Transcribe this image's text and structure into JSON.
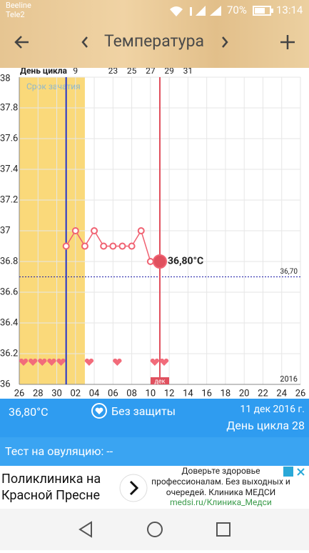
{
  "status_bar": {
    "carrier1": "Beeline",
    "carrier2": "Tele2",
    "battery": "70%",
    "time": "13:14"
  },
  "header": {
    "title": "Температура"
  },
  "chart_data": {
    "type": "line",
    "categories": [
      "26",
      null,
      "28",
      null,
      "30",
      null,
      "02",
      null,
      "04",
      null,
      "06",
      null,
      "08",
      null,
      "10",
      null,
      "12",
      null,
      "14",
      null,
      "16",
      null,
      "18",
      null,
      "20",
      null,
      "22",
      null,
      "24",
      null,
      "26"
    ],
    "series": [
      {
        "color": "#f06272",
        "values": [
          null,
          null,
          null,
          null,
          null,
          36.9,
          37,
          36.9,
          37,
          36.9,
          36.9,
          36.9,
          36.9,
          37,
          36.8,
          36.8,
          null,
          null,
          null,
          null,
          null,
          null,
          null,
          null,
          null,
          null,
          null,
          null,
          null,
          null,
          null
        ],
        "value_labels": [
          null,
          null,
          null,
          null,
          null,
          null,
          null,
          null,
          null,
          null,
          null,
          null,
          null,
          null,
          null,
          "36,80°C",
          null,
          null,
          null,
          null,
          null,
          null,
          null,
          null,
          null,
          null,
          null,
          null,
          null,
          null,
          null
        ]
      }
    ],
    "ylim": [
      36,
      38
    ],
    "yticks": [
      36,
      36.2,
      36.4,
      36.6,
      36.8,
      37,
      37.2,
      37.4,
      37.6,
      37.8,
      38
    ],
    "grid": true,
    "cover_line": {
      "value": 36.7,
      "label": "36,70",
      "color": "#1a1aa8"
    },
    "fertile_window": {
      "label": "Срок зачатия",
      "start": 0,
      "end": 7,
      "color": "#fad97a"
    },
    "ovulation_index": 5,
    "today": {
      "index": 15,
      "label": "дек"
    },
    "hearts": [
      0,
      1,
      2,
      3,
      4,
      7,
      10,
      14,
      15
    ],
    "year": "2016",
    "cycle_day_label": "День цикла",
    "cycle_day_ticks": [
      {
        "value": 6,
        "label": "9"
      },
      {
        "value": 10,
        "label": "23"
      },
      {
        "value": 12,
        "label": "25"
      },
      {
        "value": 14,
        "label": "27"
      },
      {
        "value": 16,
        "label": "29"
      },
      {
        "value": 18,
        "label": "31"
      }
    ]
  },
  "info": {
    "temperature": "36,80°C",
    "protection": "Без защиты",
    "date": "11 дек 2016 г.",
    "cycle_day": "День цикла 28"
  },
  "ovulation_test": "Тест на овуляцию: --",
  "ad": {
    "title": "Поликлиника на Красной Пресне",
    "text": "Доверьте здоровье профессионалам. Без выходных и очередей. Клиника МЕДСИ",
    "url": "medsi.ru/Клиника_Медси"
  }
}
